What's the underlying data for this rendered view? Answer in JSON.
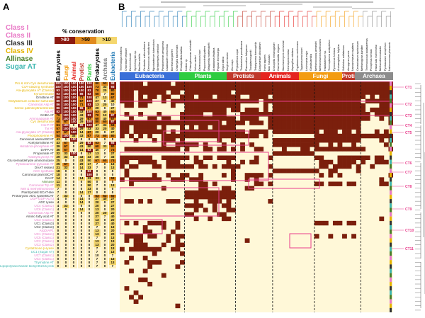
{
  "panel_a": {
    "label": "A",
    "legend": [
      {
        "text": "Class I",
        "color": "#e879c6"
      },
      {
        "text": "Class II",
        "color": "#e879c6"
      },
      {
        "text": "Class III",
        "color": "#333333"
      },
      {
        "text": "Class IV",
        "color": "#e6b400"
      },
      {
        "text": "Allinase",
        "color": "#4a7f2a"
      },
      {
        "text": "Sugar AT",
        "color": "#3fb7b0"
      }
    ],
    "conservation_title": "% conservation",
    "conservation_levels": [
      {
        "text": ">80",
        "bg": "#8b1a10"
      },
      {
        "text": ">50",
        "bg": "#e08a1e"
      },
      {
        "text": ">10",
        "bg": "#f5d76e"
      }
    ],
    "columns": [
      {
        "text": "Eukaryotes",
        "color": "#000000"
      },
      {
        "text": "Fungi",
        "color": "#f39c12"
      },
      {
        "text": "Animal",
        "color": "#e52420"
      },
      {
        "text": "Protist",
        "color": "#c0392b"
      },
      {
        "text": "Plants",
        "color": "#2ecc40"
      },
      {
        "text": "Prokaryotes",
        "color": "#000000"
      },
      {
        "text": "Archaea",
        "color": "#7f7f7f"
      },
      {
        "text": "Eubacteria",
        "color": "#1f78b4"
      }
    ],
    "rows": [
      {
        "name": "Pro & ntrn Cys desulfurase",
        "color": "#e6b400",
        "vals": [
          "100",
          "100",
          "100",
          "100",
          "100",
          "80",
          "53",
          "98"
        ]
      },
      {
        "name": "CoA-utilizing synthase",
        "color": "#e6b400",
        "vals": [
          "100",
          "100",
          "100",
          "100",
          "100",
          "73",
          "33",
          "93"
        ]
      },
      {
        "name": "Ala-glyoxylate AT (Class4)",
        "color": "#e6b400",
        "vals": [
          "93",
          "100",
          "100",
          "100",
          "83",
          "70",
          "20",
          "80"
        ]
      },
      {
        "name": "Kynureninase",
        "color": "#e6b400",
        "vals": [
          "93",
          "100",
          "100",
          "86",
          "83",
          "60",
          "7",
          "80"
        ]
      },
      {
        "name": "Ornithine AT",
        "color": "#333333",
        "vals": [
          "89",
          "100",
          "100",
          "71",
          "100",
          "47",
          "13",
          "67"
        ]
      },
      {
        "name": "Molybdenum cofactor sulfurase",
        "color": "#e6b400",
        "vals": [
          "89",
          "100",
          "100",
          "57",
          "100",
          "27",
          "0",
          "40"
        ]
      },
      {
        "name": "Canonical Asp AT",
        "color": "#e879c6",
        "vals": [
          "86",
          "100",
          "100",
          "71",
          "83",
          "13",
          "20",
          "10"
        ]
      },
      {
        "name": "Serine palmitoyltransferase",
        "color": "#e6b400",
        "vals": [
          "86",
          "100",
          "100",
          "86",
          "67",
          "20",
          "0",
          "27"
        ]
      },
      {
        "name": "Ala AT",
        "color": "#e879c6",
        "vals": [
          "82",
          "100",
          "100",
          "43",
          "100",
          "53",
          "40",
          "60"
        ]
      },
      {
        "name": "GABA AT",
        "color": "#333333",
        "vals": [
          "79",
          "100",
          "100",
          "43",
          "83",
          "70",
          "13",
          "87"
        ]
      },
      {
        "name": "Aminoadipate AT",
        "color": "#e879c6",
        "vals": [
          "71",
          "100",
          "100",
          "29",
          "67",
          "60",
          "40",
          "67"
        ]
      },
      {
        "name": "Cys desulfurase",
        "color": "#e6b400",
        "vals": [
          "68",
          "67",
          "100",
          "29",
          "100",
          "80",
          "60",
          "87"
        ]
      },
      {
        "name": "His-P AT",
        "color": "#e879c6",
        "vals": [
          "61",
          "100",
          "0",
          "86",
          "100",
          "47",
          "33",
          "53"
        ]
      },
      {
        "name": "Tyr AT",
        "color": "#e879c6",
        "vals": [
          "57",
          "100",
          "100",
          "29",
          "33",
          "33",
          "20",
          "40"
        ]
      },
      {
        "name": "Ala-glyoxylate AT (Class2)",
        "color": "#e879c6",
        "vals": [
          "57",
          "67",
          "100",
          "14",
          "67",
          "20",
          "0",
          "27"
        ]
      },
      {
        "name": "Phosphoserine AT",
        "color": "#e6b400",
        "vals": [
          "54",
          "100",
          "33",
          "43",
          "67",
          "73",
          "60",
          "80"
        ]
      },
      {
        "name": "Canonical animal BCAT",
        "color": "#333333",
        "vals": [
          "43",
          "0",
          "100",
          "0",
          "0",
          "0",
          "0",
          "0"
        ]
      },
      {
        "name": "Acetylornithine AT",
        "color": "#333333",
        "vals": [
          "43",
          "67",
          "0",
          "29",
          "83",
          "53",
          "7",
          "93"
        ]
      },
      {
        "name": "Histidinol-phosphate AT",
        "color": "#e879c6",
        "vals": [
          "39",
          "67",
          "0",
          "43",
          "50",
          "60",
          "33",
          "80"
        ]
      },
      {
        "name": "DAPA AT",
        "color": "#333333",
        "vals": [
          "36",
          "67",
          "0",
          "14",
          "83",
          "40",
          "7",
          "73"
        ]
      },
      {
        "name": "Propionate AT",
        "color": "#333333",
        "vals": [
          "32",
          "33",
          "100",
          "0",
          "17",
          "13",
          "0",
          "27"
        ]
      },
      {
        "name": "AlaGlyl/LysAlyl AT",
        "color": "#e879c6",
        "vals": [
          "29",
          "33",
          "0",
          "43",
          "33",
          "20",
          "7",
          "33"
        ]
      },
      {
        "name": "Glu semialdehyde aminomutase",
        "color": "#333333",
        "vals": [
          "25",
          "0",
          "0",
          "43",
          "50",
          "67",
          "60",
          "73"
        ]
      },
      {
        "name": "Pyridoxamine-pyruvate AT",
        "color": "#e879c6",
        "vals": [
          "25",
          "67",
          "0",
          "29",
          "17",
          "7",
          "0",
          "13"
        ]
      },
      {
        "name": "DAAT related",
        "color": "#333333",
        "vals": [
          "21",
          "33",
          "0",
          "14",
          "33",
          "7",
          "0",
          "13"
        ]
      },
      {
        "name": "ACC synthase",
        "color": "#e879c6",
        "vals": [
          "18",
          "0",
          "0",
          "0",
          "83",
          "0",
          "0",
          "0"
        ]
      },
      {
        "name": "Canonical plant BCAT",
        "color": "#333333",
        "vals": [
          "18",
          "0",
          "0",
          "0",
          "100",
          "0",
          "0",
          "0"
        ]
      },
      {
        "name": "DAAT",
        "color": "#333333",
        "vals": [
          "14",
          "0",
          "0",
          "14",
          "33",
          "33",
          "0",
          "53"
        ]
      },
      {
        "name": "Alliinase",
        "color": "#4a7f2a",
        "vals": [
          "11",
          "0",
          "0",
          "0",
          "50",
          "0",
          "0",
          "0"
        ]
      },
      {
        "name": "Canonical Trp AT",
        "color": "#e879c6",
        "vals": [
          "11",
          "0",
          "0",
          "0",
          "50",
          "7",
          "0",
          "13"
        ]
      },
      {
        "name": "Met & methylthioribose",
        "color": "#e879c6",
        "vals": [
          "7",
          "0",
          "0",
          "0",
          "33",
          "0",
          "0",
          "0"
        ]
      },
      {
        "name": "Plant/protist BCAT-like",
        "color": "#333333",
        "vals": [
          "7",
          "0",
          "0",
          "14",
          "17",
          "0",
          "0",
          "0"
        ]
      },
      {
        "name": "Prokaryotic ADC lyase/BCAT",
        "color": "#333333",
        "vals": [
          "7",
          "33",
          "0",
          "0",
          "0",
          "53",
          "53",
          "60"
        ]
      },
      {
        "name": "UGP-GDP-ALT3",
        "color": "#e879c6",
        "vals": [
          "4",
          "0",
          "0",
          "14",
          "0",
          "27",
          "40",
          "27"
        ]
      },
      {
        "name": "ADC lyase",
        "color": "#333333",
        "vals": [
          "4",
          "0",
          "0",
          "14",
          "0",
          "20",
          "0",
          "27"
        ]
      },
      {
        "name": "UC4 (Class2)",
        "color": "#e879c6",
        "vals": [
          "4",
          "33",
          "0",
          "0",
          "0",
          "20",
          "0",
          "27"
        ]
      },
      {
        "name": "UC6 (Class1)",
        "color": "#e879c6",
        "vals": [
          "4",
          "0",
          "0",
          "14",
          "0",
          "13",
          "0",
          "20"
        ]
      },
      {
        "name": "Canonical Asp AT",
        "color": "#e879c6",
        "vals": [
          "0",
          "0",
          "0",
          "0",
          "0",
          "20",
          "20",
          "20"
        ]
      },
      {
        "name": "Amino fatty acid AT",
        "color": "#333333",
        "vals": [
          "0",
          "0",
          "0",
          "0",
          "0",
          "27",
          "7",
          "40"
        ]
      },
      {
        "name": "UC3 (Class1)",
        "color": "#e879c6",
        "vals": [
          "0",
          "0",
          "0",
          "0",
          "0",
          "13",
          "0",
          "20"
        ]
      },
      {
        "name": "UC1 (Class3)",
        "color": "#333333",
        "vals": [
          "0",
          "0",
          "0",
          "0",
          "0",
          "27",
          "0",
          "40"
        ]
      },
      {
        "name": "UC2 (Class3)",
        "color": "#333333",
        "vals": [
          "0",
          "0",
          "0",
          "0",
          "0",
          "7",
          "0",
          "13"
        ]
      },
      {
        "name": "ArgD/AP1",
        "color": "#e879c6",
        "vals": [
          "0",
          "0",
          "0",
          "0",
          "0",
          "13",
          "0",
          "20"
        ]
      },
      {
        "name": "UC1 (Class1)",
        "color": "#e879c6",
        "vals": [
          "0",
          "0",
          "0",
          "0",
          "0",
          "13",
          "0",
          "20"
        ]
      },
      {
        "name": "UC5 (Class1)",
        "color": "#e879c6",
        "vals": [
          "0",
          "0",
          "0",
          "0",
          "0",
          "7",
          "0",
          "13"
        ]
      },
      {
        "name": "UC2 (Class1)",
        "color": "#e879c6",
        "vals": [
          "0",
          "0",
          "0",
          "0",
          "0",
          "13",
          "7",
          "13"
        ]
      },
      {
        "name": "UC3 (Class2)",
        "color": "#e879c6",
        "vals": [
          "0",
          "0",
          "0",
          "0",
          "0",
          "13",
          "0",
          "20"
        ]
      },
      {
        "name": "Cystathione β-lyase",
        "color": "#e6b400",
        "vals": [
          "0",
          "0",
          "0",
          "0",
          "0",
          "7",
          "0",
          "13"
        ]
      },
      {
        "name": "UC1 (Sugar AT)",
        "color": "#3fb7b0",
        "vals": [
          "0",
          "0",
          "0",
          "0",
          "0",
          "7",
          "0",
          "13"
        ]
      },
      {
        "name": "UC7 (Class1)",
        "color": "#e879c6",
        "vals": [
          "0",
          "0",
          "0",
          "0",
          "0",
          "10",
          "0",
          "7"
        ]
      },
      {
        "name": "UC4 (Class1)",
        "color": "#e879c6",
        "vals": [
          "0",
          "0",
          "0",
          "0",
          "0",
          "7",
          "0",
          "13"
        ]
      },
      {
        "name": "Thymidine AT",
        "color": "#3fb7b0",
        "vals": [
          "0",
          "0",
          "0",
          "0",
          "0",
          "7",
          "0",
          "13"
        ]
      },
      {
        "name": "Lipopolysaccharide biosynthesis protein",
        "color": "#3fb7b0",
        "vals": [
          "0",
          "0",
          "0",
          "0",
          "0",
          "7",
          "0",
          "7"
        ]
      }
    ]
  },
  "panel_b": {
    "label": "B",
    "groups": [
      {
        "text": "Eubacteria",
        "color": "#3a6fd8"
      },
      {
        "text": "Plants",
        "color": "#2ecc40"
      },
      {
        "text": "Protists",
        "color": "#c0392b"
      },
      {
        "text": "Animals",
        "color": "#e52420"
      },
      {
        "text": "Fungi",
        "color": "#f39c12"
      },
      {
        "text": "Protists",
        "color": "#c0392b"
      },
      {
        "text": "Archaea",
        "color": "#8c8c8c"
      }
    ],
    "species": [
      "Thermotoga maritima",
      "Chlorobium tepidum",
      "Escherichia coli",
      "Synechocystis sp.",
      "Bacillus subtilis",
      "Geobacter sulfurreducens",
      "Deinococcus radiodurans",
      "Mycobacterium tuberculosis",
      "Streptomyces coelicolor",
      "Pseudomonas aeruginosa",
      "Caulobacter crescentus",
      "Borrelia burgdorferi",
      "Chlamydia trachomatis",
      "Rhodopirellula baltica",
      "Nostoc sp.",
      "Chlamydomonas reinhardtii",
      "Volvox carteri",
      "Ostreococcus tauri",
      "Physcomitrella patens",
      "Selaginella moellendorffii",
      "Arabidopsis thaliana",
      "Populus trichocarpa",
      "Oryza sativa",
      "Sorghum bicolor",
      "Zea mays",
      "Phytophthora sojae",
      "Thalassiosira pseudonana",
      "Plasmodium falciparum",
      "Toxoplasma gondii",
      "Tetrahymena thermophila",
      "Dictyostelium discoideum",
      "Homo sapiens",
      "Mus musculus",
      "Drosophila melanogaster",
      "Caenorhabditis elegans",
      "Saccharomyces cerevisiae",
      "Neurospora crassa",
      "Aspergillus nidulans",
      "Cryptococcus neoformans",
      "Trypanosoma brucei",
      "Leishmania major",
      "Giardia lamblia",
      "Methanococcus jannaschii",
      "Methanosarcina acetivorans",
      "Halobacterium sp.",
      "Thermoplasma acidophilum",
      "Pyrococcus furiosus",
      "Archaeoglobus fulgidus",
      "Sulfolobus solfataricus",
      "Aeropyrum pernix",
      "Nanoarchaeum equitans",
      "Cenarchaeum symbiosum",
      "Methanopyrus kandleri",
      "Thermococcus kodakarensis",
      "Picrophilus torridus",
      "Haloarcula marismortui",
      "Methanothermobacter",
      "Pyrobaculum aerophilum",
      "Natronomonas pharaonis"
    ],
    "clusters": [
      "CT1",
      "CT2",
      "CT3",
      "CT4",
      "CT5",
      "CT6",
      "CT7",
      "CT8",
      "CT9",
      "CT10",
      "CT11"
    ]
  },
  "colors": {
    "present": "#7b1f0c",
    "absent": "#fff8d8",
    "frame": "#e83e8c",
    "cell_dark": "#8b1a10",
    "cell_mid": "#e08a1e",
    "cell_light": "#f5d76e",
    "cell_pale": "#fff1c4"
  }
}
